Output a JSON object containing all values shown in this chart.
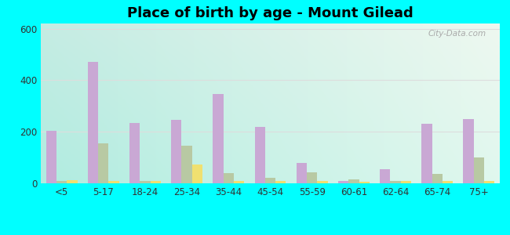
{
  "title": "Place of birth by age - Mount Gilead",
  "categories": [
    "<5",
    "5-17",
    "18-24",
    "25-34",
    "35-44",
    "45-54",
    "55-59",
    "60-61",
    "62-64",
    "65-74",
    "75+"
  ],
  "born_in_state": [
    205,
    470,
    235,
    245,
    345,
    218,
    78,
    8,
    55,
    232,
    248
  ],
  "born_other_state": [
    10,
    155,
    10,
    145,
    40,
    20,
    42,
    15,
    8,
    35,
    100
  ],
  "native_outside_us": [
    12,
    10,
    8,
    72,
    8,
    10,
    10,
    5,
    8,
    8,
    8
  ],
  "color_state": "#c9a8d4",
  "color_other": "#b8c9a3",
  "color_native": "#f0e070",
  "ylim": [
    0,
    620
  ],
  "yticks": [
    0,
    200,
    400,
    600
  ],
  "bg_outer": "#00ffff",
  "watermark": "City-Data.com",
  "bar_width": 0.25,
  "title_fontsize": 13,
  "tick_fontsize": 8.5,
  "legend_fontsize": 8.5,
  "grid_color": "#dddddd",
  "grad_top_left": "#c8eee8",
  "grad_top_right": "#e8f8f0",
  "grad_bottom_left": "#c0f0e0",
  "grad_bottom_right": "#f0fff8"
}
